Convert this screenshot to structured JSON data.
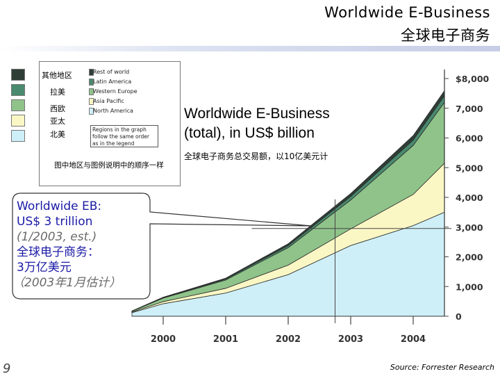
{
  "header": {
    "title_en": "Worldwide E-Business",
    "title_cn": "全球电子商务"
  },
  "legend": {
    "cn_labels": [
      "其他地区",
      "拉美",
      "西欧",
      "亚太",
      "北美"
    ],
    "en_labels": [
      "Rest of world",
      "Latin America",
      "Western Europe",
      "Asia Pacific",
      "North America"
    ],
    "note": "Regions in the graph follow the same order as in the legend",
    "caption": "图中地区与图例说明中的顺序一样",
    "colors": [
      "#2f3e36",
      "#4a8a6e",
      "#8fc38a",
      "#fbf7c5",
      "#cfeff8"
    ]
  },
  "caption": {
    "line1": "Worldwide E-Business",
    "line2": "(total), in US$ billion",
    "cn": "全球电子商务总交易额，以10亿美元计"
  },
  "callout": {
    "line1": "Worldwide EB:",
    "line2": "US$ 3 trillion",
    "line3": "(1/2003, est.)",
    "line4": "全球电子商务：",
    "line5": "3万亿美元",
    "line6": "（2003年1月估计）"
  },
  "footer": {
    "page_number": "9",
    "source": "Source: Forrester Research"
  },
  "chart_data": {
    "type": "area",
    "stacked": true,
    "title": "Worldwide E-Business (total), in US$ billion",
    "x": [
      1999.5,
      2000,
      2001,
      2002,
      2003,
      2004,
      2004.5
    ],
    "x_tick_labels": [
      "2000",
      "2001",
      "2002",
      "2003",
      "2004"
    ],
    "y_tick_labels": [
      "0",
      "1,000",
      "2,000",
      "3,000",
      "4,000",
      "5,000",
      "6,000",
      "7,000",
      "$8,000"
    ],
    "ylim": [
      0,
      8000
    ],
    "series": [
      {
        "name": "North America",
        "color": "#cfeff8",
        "values": [
          120,
          420,
          780,
          1400,
          2380,
          3050,
          3500
        ]
      },
      {
        "name": "Asia Pacific",
        "color": "#fbf7c5",
        "values": [
          20,
          70,
          160,
          320,
          560,
          1050,
          1650
        ]
      },
      {
        "name": "Western Europe",
        "color": "#8fc38a",
        "values": [
          30,
          120,
          280,
          590,
          970,
          1650,
          2050
        ]
      },
      {
        "name": "Latin America",
        "color": "#4a8a6e",
        "values": [
          5,
          15,
          30,
          70,
          120,
          180,
          220
        ]
      },
      {
        "name": "Rest of world",
        "color": "#2f3e36",
        "values": [
          5,
          15,
          30,
          60,
          100,
          150,
          170
        ]
      }
    ],
    "marker": {
      "x": 2002.75,
      "value": 3000
    }
  }
}
